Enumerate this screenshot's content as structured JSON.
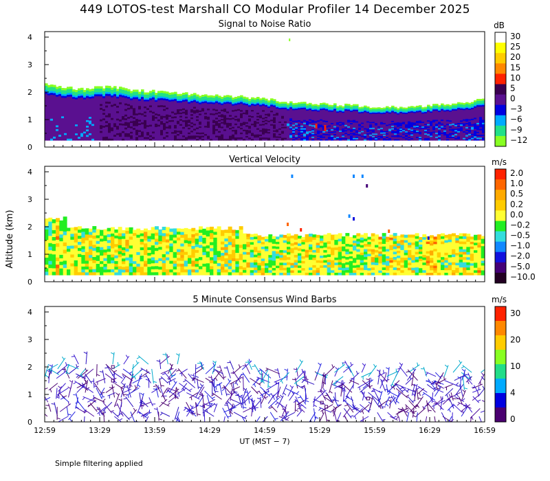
{
  "title": "449 LOTOS-test Marshall CO Modular Profiler 14 December 2025",
  "footer_note": "Simple filtering applied",
  "ylabel": "Altitude (km)",
  "xlabel": "UT  (MST − 7)",
  "x_ticks": [
    "12:59",
    "13:29",
    "13:59",
    "14:29",
    "14:59",
    "15:29",
    "15:59",
    "16:29",
    "16:59"
  ],
  "y_ticks": [
    "0",
    "1",
    "2",
    "3",
    "4"
  ],
  "chart_data": [
    {
      "type": "heatmap",
      "title": "Signal to Noise Ratio",
      "unit": "dB",
      "xlim": [
        "12:59",
        "16:59"
      ],
      "ylim": [
        0,
        4.2
      ],
      "colorbar_labels": [
        "30",
        "25",
        "20",
        "15",
        "10",
        "5",
        "0",
        "−3",
        "−6",
        "−9",
        "−12"
      ],
      "colors": [
        "#ffffff",
        "#ffff00",
        "#ffcc00",
        "#ff8800",
        "#ff2200",
        "#3a0050",
        "#5a1090",
        "#0000e0",
        "#00aaff",
        "#22e088",
        "#88ff22"
      ],
      "echo_top_km": [
        2.3,
        2.1,
        2.2,
        2.05,
        2.0,
        1.9,
        1.85,
        1.75,
        1.6,
        1.55,
        1.5,
        1.45,
        1.5,
        1.55,
        1.75
      ]
    },
    {
      "type": "heatmap",
      "title": "Vertical Velocity",
      "unit": "m/s",
      "xlim": [
        "12:59",
        "16:59"
      ],
      "ylim": [
        0,
        4.2
      ],
      "colorbar_labels": [
        "2.0",
        "1.0",
        "0.5",
        "0.2",
        "0.0",
        "−0.2",
        "−0.5",
        "−1.0",
        "−2.0",
        "−5.0",
        "−10.0"
      ],
      "colors": [
        "#ff2200",
        "#ff6600",
        "#ffaa00",
        "#ffcc00",
        "#ffff33",
        "#22ee22",
        "#33dddd",
        "#1188ff",
        "#1111dd",
        "#440077",
        "#220022"
      ]
    },
    {
      "type": "scatter",
      "title": "5 Minute Consensus Wind Barbs",
      "unit": "m/s",
      "xlim": [
        "12:59",
        "16:59"
      ],
      "ylim": [
        0,
        4.2
      ],
      "colorbar_labels": [
        "30",
        "20",
        "10",
        "4",
        "0"
      ],
      "colors": [
        "#ff2200",
        "#ff8800",
        "#ffcc00",
        "#88ff22",
        "#22dd88",
        "#00aaff",
        "#0000e0",
        "#4a0070"
      ]
    }
  ]
}
